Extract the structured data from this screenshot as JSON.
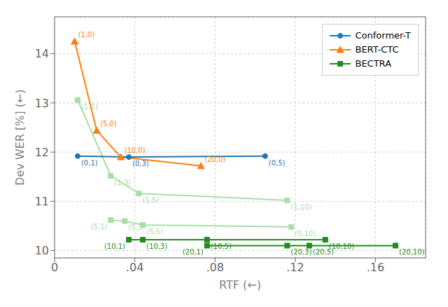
{
  "chart_data": {
    "type": "line",
    "xlabel": "RTF (←)",
    "ylabel": "Dev WER [%] (←)",
    "xlim": [
      0.0,
      0.185
    ],
    "ylim": [
      9.85,
      14.75
    ],
    "xticks": [
      0,
      {
        "value": 0.04,
        "label": ".04"
      },
      {
        "value": 0.08,
        "label": ".08"
      },
      {
        "value": 0.12,
        "label": ".12"
      },
      {
        "value": 0.16,
        "label": ".16"
      }
    ],
    "yticks": [
      10,
      11,
      12,
      13,
      14
    ],
    "grid": true,
    "legend": "upper right",
    "series": [
      {
        "name": "Conformer-T",
        "color": "#1f77b4",
        "marker": "circle",
        "x": [
          0.0115,
          0.037,
          0.105
        ],
        "values": [
          11.92,
          11.9,
          11.92
        ],
        "annotations": [
          "(0,1)",
          "(0,3)",
          "(0,5)"
        ]
      },
      {
        "name": "BERT-CTC",
        "color": "#ff7f0e",
        "marker": "triangle",
        "x": [
          0.01,
          0.021,
          0.033,
          0.073
        ],
        "values": [
          14.25,
          12.44,
          11.9,
          11.72
        ],
        "annotations": [
          "(1,0)",
          "(5,0)",
          "(10,0)",
          "(20,0)"
        ]
      },
      {
        "name": "BECTRA",
        "color": "#228B22",
        "marker": "square",
        "x": [
          0.037,
          0.044,
          0.076,
          0.135
        ],
        "values": [
          10.22,
          10.22,
          10.22,
          10.22
        ],
        "annotations": [
          "(10,1)",
          "(10,3)",
          "(10,5)",
          "(10,10)"
        ]
      },
      {
        "color": "#228B22",
        "marker": "square",
        "x": [
          0.076,
          0.116,
          0.127,
          0.17
        ],
        "values": [
          10.1,
          10.1,
          10.1,
          10.1
        ],
        "annotations": [
          "(20,1)",
          "(20,3)",
          "(20,5)",
          "(20,10)"
        ]
      },
      {
        "color": "#aaddaa",
        "marker": "square",
        "x": [
          0.0115,
          0.028,
          0.042,
          0.116
        ],
        "values": [
          13.06,
          11.52,
          11.16,
          11.02
        ],
        "annotations": [
          "(1,1)",
          "(1,3)",
          "(1,5)",
          "(1,10)"
        ]
      },
      {
        "color": "#aaddaa",
        "marker": "square",
        "x": [
          0.028,
          0.035,
          0.044,
          0.118
        ],
        "values": [
          10.62,
          10.6,
          10.52,
          10.48
        ],
        "annotations": [
          "(5,1)",
          "(5,3)",
          "(5,5)",
          "(5,10)"
        ]
      }
    ]
  }
}
